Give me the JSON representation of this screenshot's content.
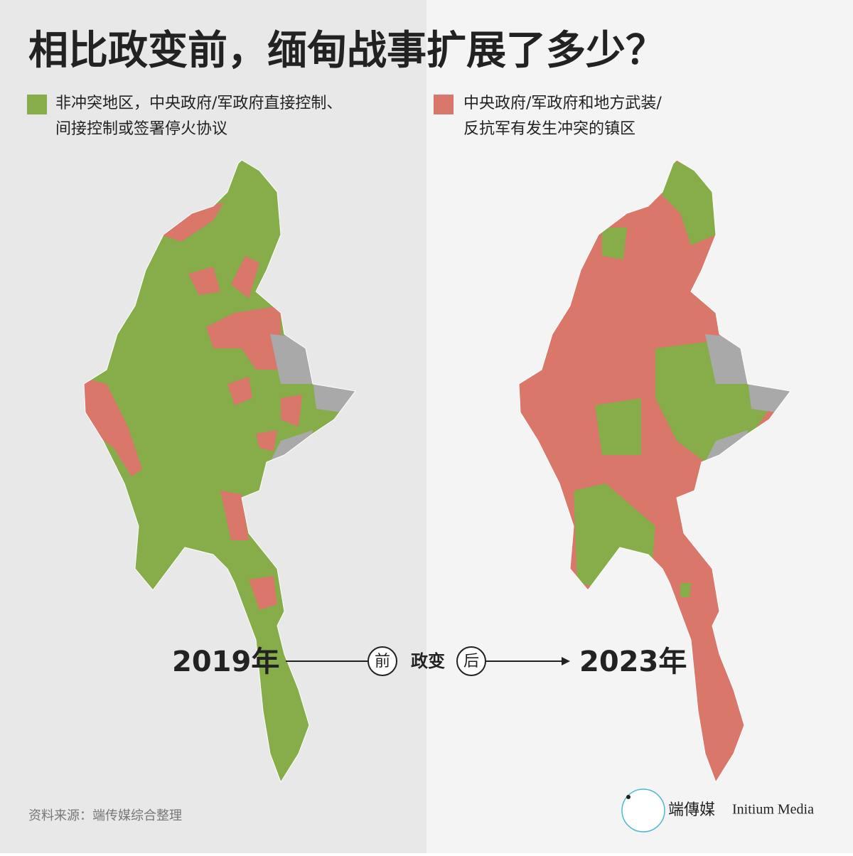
{
  "header": {
    "title": "相比政变前，缅甸战事扩展了多少？"
  },
  "legend": [
    {
      "label_line1": "非冲突地区，中央政府/军政府直接控制、",
      "label_line2": "间接控制或签署停火协议",
      "color": "#86ad4a"
    },
    {
      "label_line1": "中央政府/军政府和地方武装/",
      "label_line2": "反抗军有发生冲突的镇区",
      "color": "#d9776a"
    }
  ],
  "timeline": {
    "before_year": "2019年",
    "before": "前",
    "event": "政变",
    "after": "后",
    "after_year": "2023年"
  },
  "footer": {
    "source": "资料来源：端传媒综合整理",
    "logo_cn": "端傳媒",
    "logo_en": "Initium Media"
  }
}
